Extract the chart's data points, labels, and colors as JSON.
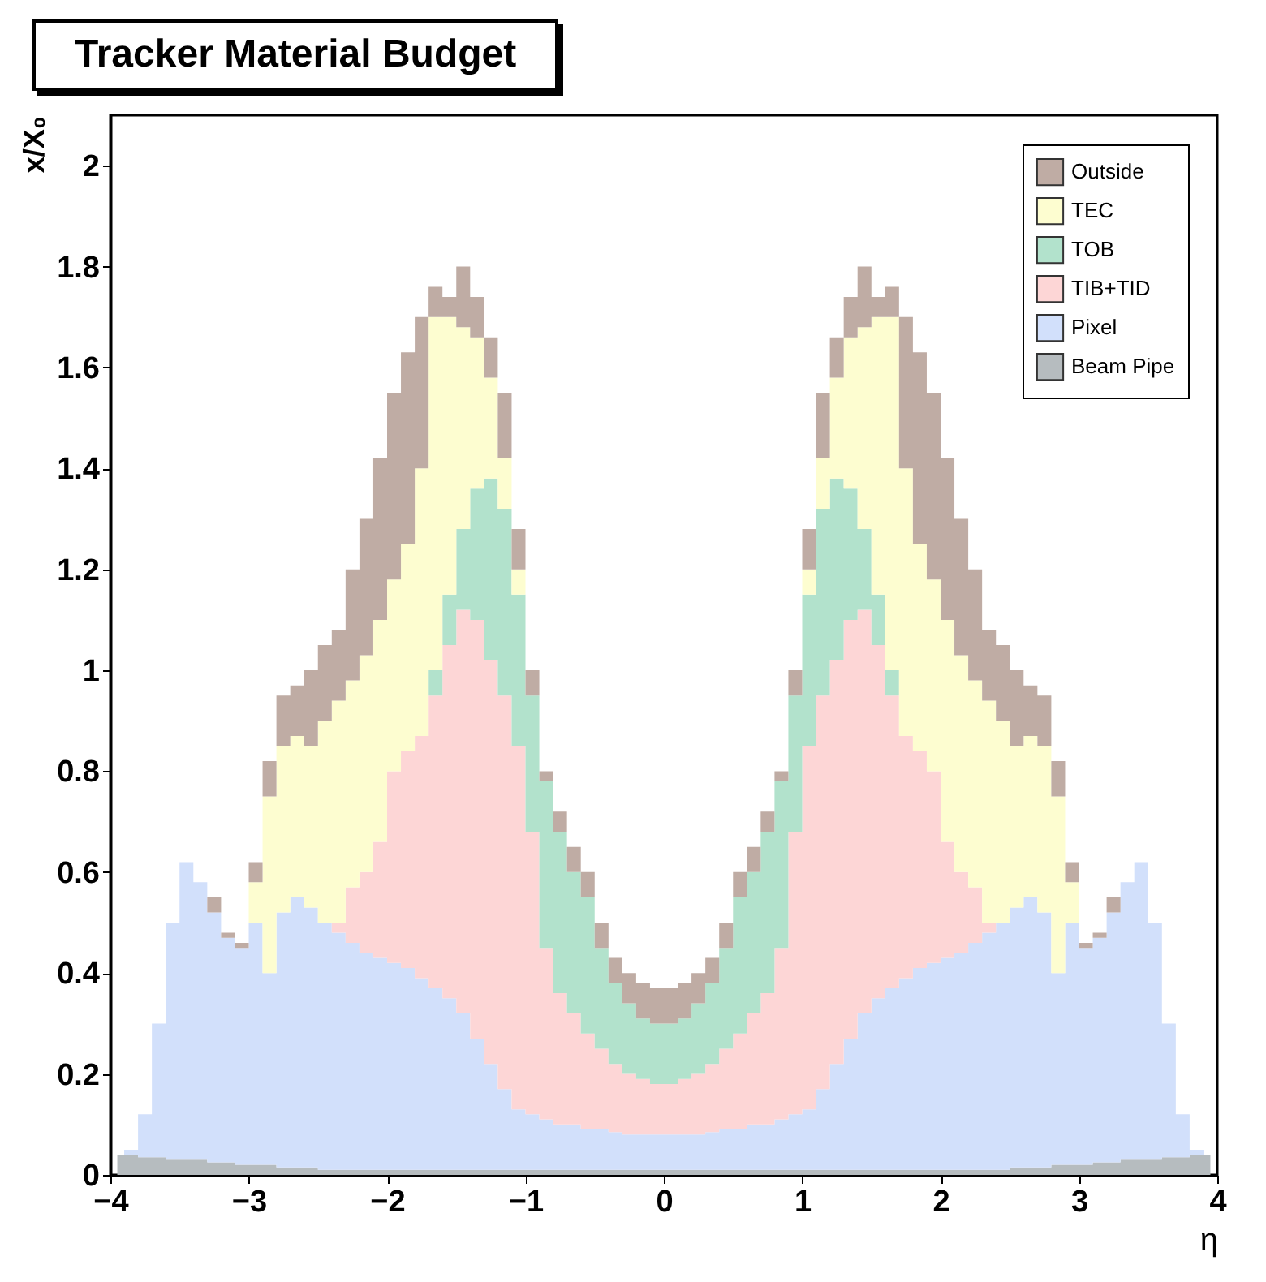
{
  "chart_data": {
    "type": "area",
    "title": "Tracker Material Budget",
    "xlabel": "η",
    "ylabel": "x/X₀",
    "stacked": true,
    "legend": "top right",
    "grid": false,
    "x": [
      -3.95,
      -3.85,
      -3.75,
      -3.65,
      -3.55,
      -3.45,
      -3.35,
      -3.25,
      -3.15,
      -3.05,
      -2.95,
      -2.85,
      -2.75,
      -2.65,
      -2.55,
      -2.45,
      -2.35,
      -2.25,
      -2.15,
      -2.05,
      -1.95,
      -1.85,
      -1.75,
      -1.65,
      -1.55,
      -1.45,
      -1.35,
      -1.25,
      -1.15,
      -1.05,
      -0.95,
      -0.85,
      -0.75,
      -0.65,
      -0.55,
      -0.45,
      -0.35,
      -0.25,
      -0.15,
      -0.05,
      0.05,
      0.15,
      0.25,
      0.35,
      0.45,
      0.55,
      0.65,
      0.75,
      0.85,
      0.95,
      1.05,
      1.15,
      1.25,
      1.35,
      1.45,
      1.55,
      1.65,
      1.75,
      1.85,
      1.95,
      2.05,
      2.15,
      2.25,
      2.35,
      2.45,
      2.55,
      2.65,
      2.75,
      2.85,
      2.95,
      3.05,
      3.15,
      3.25,
      3.35,
      3.45,
      3.55,
      3.65,
      3.75,
      3.85,
      3.95
    ],
    "xlim": [
      -4,
      4
    ],
    "xticks": [
      -4,
      -3,
      -2,
      -1,
      0,
      1,
      2,
      3,
      4
    ],
    "ylim": [
      0,
      2.1
    ],
    "yticks": [
      0,
      0.2,
      0.4,
      0.6,
      0.8,
      1,
      1.2,
      1.4,
      1.6,
      1.8,
      2
    ],
    "series": [
      {
        "name": "Beam Pipe",
        "color": "#b6bcbf",
        "values": [
          0.04,
          0.04,
          0.035,
          0.035,
          0.03,
          0.03,
          0.03,
          0.025,
          0.025,
          0.02,
          0.02,
          0.02,
          0.015,
          0.015,
          0.015,
          0.01,
          0.01,
          0.01,
          0.01,
          0.01,
          0.01,
          0.01,
          0.01,
          0.01,
          0.01,
          0.01,
          0.01,
          0.01,
          0.01,
          0.01,
          0.01,
          0.01,
          0.01,
          0.01,
          0.01,
          0.01,
          0.01,
          0.01,
          0.01,
          0.01,
          0.01,
          0.01,
          0.01,
          0.01,
          0.01,
          0.01,
          0.01,
          0.01,
          0.01,
          0.01,
          0.01,
          0.01,
          0.01,
          0.01,
          0.01,
          0.01,
          0.01,
          0.01,
          0.01,
          0.01,
          0.01,
          0.01,
          0.01,
          0.01,
          0.01,
          0.015,
          0.015,
          0.015,
          0.02,
          0.02,
          0.02,
          0.025,
          0.025,
          0.03,
          0.03,
          0.03,
          0.035,
          0.035,
          0.04,
          0.04
        ]
      },
      {
        "name": "Pixel",
        "color": "#d2e0fb",
        "values": [
          0,
          0.01,
          0.085,
          0.265,
          0.47,
          0.59,
          0.55,
          0.495,
          0.445,
          0.43,
          0.48,
          0.38,
          0.505,
          0.535,
          0.515,
          0.49,
          0.47,
          0.45,
          0.43,
          0.42,
          0.41,
          0.4,
          0.38,
          0.36,
          0.34,
          0.31,
          0.26,
          0.21,
          0.16,
          0.12,
          0.11,
          0.1,
          0.09,
          0.09,
          0.08,
          0.08,
          0.075,
          0.07,
          0.07,
          0.07,
          0.07,
          0.07,
          0.07,
          0.075,
          0.08,
          0.08,
          0.09,
          0.09,
          0.1,
          0.11,
          0.12,
          0.16,
          0.21,
          0.26,
          0.31,
          0.34,
          0.36,
          0.38,
          0.4,
          0.41,
          0.42,
          0.43,
          0.45,
          0.47,
          0.49,
          0.515,
          0.535,
          0.505,
          0.38,
          0.48,
          0.43,
          0.445,
          0.495,
          0.55,
          0.59,
          0.47,
          0.265,
          0.085,
          0.01,
          0
        ]
      },
      {
        "name": "TIB+TID",
        "color": "#fdd6d6",
        "values": [
          0,
          0,
          0,
          0,
          0,
          0,
          0,
          0,
          0,
          0,
          0,
          0,
          0,
          0,
          0,
          0,
          0.02,
          0.11,
          0.16,
          0.23,
          0.38,
          0.43,
          0.48,
          0.58,
          0.7,
          0.8,
          0.83,
          0.8,
          0.78,
          0.72,
          0.56,
          0.34,
          0.26,
          0.22,
          0.19,
          0.16,
          0.135,
          0.12,
          0.11,
          0.1,
          0.1,
          0.11,
          0.12,
          0.135,
          0.16,
          0.19,
          0.22,
          0.26,
          0.34,
          0.56,
          0.72,
          0.78,
          0.8,
          0.83,
          0.8,
          0.7,
          0.58,
          0.48,
          0.43,
          0.38,
          0.23,
          0.16,
          0.11,
          0.02,
          0,
          0,
          0,
          0,
          0,
          0,
          0,
          0,
          0,
          0,
          0,
          0,
          0,
          0,
          0,
          0
        ]
      },
      {
        "name": "TOB",
        "color": "#b2e2cc",
        "values": [
          0,
          0,
          0,
          0,
          0,
          0,
          0,
          0,
          0,
          0,
          0,
          0,
          0,
          0,
          0,
          0,
          0,
          0,
          0,
          0,
          0,
          0,
          0,
          0.05,
          0.1,
          0.16,
          0.26,
          0.36,
          0.37,
          0.3,
          0.27,
          0.33,
          0.32,
          0.28,
          0.27,
          0.2,
          0.16,
          0.14,
          0.12,
          0.12,
          0.12,
          0.12,
          0.14,
          0.16,
          0.2,
          0.27,
          0.28,
          0.32,
          0.33,
          0.27,
          0.3,
          0.37,
          0.36,
          0.26,
          0.16,
          0.1,
          0.05,
          0,
          0,
          0,
          0,
          0,
          0,
          0,
          0,
          0,
          0,
          0,
          0,
          0,
          0,
          0,
          0,
          0,
          0,
          0,
          0,
          0,
          0,
          0
        ]
      },
      {
        "name": "TEC",
        "color": "#fdfdd0",
        "values": [
          0,
          0,
          0,
          0,
          0,
          0,
          0,
          0,
          0,
          0,
          0.08,
          0.35,
          0.33,
          0.32,
          0.32,
          0.4,
          0.44,
          0.41,
          0.43,
          0.44,
          0.38,
          0.41,
          0.53,
          0.7,
          0.55,
          0.4,
          0.3,
          0.2,
          0.1,
          0.05,
          0,
          0,
          0,
          0,
          0,
          0,
          0,
          0,
          0,
          0,
          0,
          0,
          0,
          0,
          0,
          0,
          0,
          0,
          0,
          0,
          0.05,
          0.1,
          0.2,
          0.3,
          0.4,
          0.55,
          0.7,
          0.53,
          0.41,
          0.38,
          0.44,
          0.43,
          0.41,
          0.44,
          0.4,
          0.32,
          0.32,
          0.33,
          0.35,
          0.08,
          0,
          0,
          0,
          0,
          0,
          0,
          0,
          0,
          0,
          0
        ]
      },
      {
        "name": "Outside",
        "color": "#bfaca4",
        "values": [
          0,
          0,
          0,
          0,
          0,
          0,
          0,
          0.03,
          0.01,
          0.01,
          0.04,
          0.07,
          0.1,
          0.1,
          0.15,
          0.15,
          0.14,
          0.22,
          0.27,
          0.32,
          0.37,
          0.38,
          0.3,
          0.06,
          0.04,
          0.12,
          0.08,
          0.08,
          0.13,
          0.08,
          0.05,
          0.02,
          0.04,
          0.05,
          0.05,
          0.05,
          0.05,
          0.06,
          0.07,
          0.07,
          0.07,
          0.07,
          0.06,
          0.05,
          0.05,
          0.05,
          0.05,
          0.04,
          0.02,
          0.05,
          0.08,
          0.13,
          0.08,
          0.08,
          0.12,
          0.04,
          0.06,
          0.3,
          0.38,
          0.37,
          0.32,
          0.27,
          0.22,
          0.14,
          0.15,
          0.15,
          0.1,
          0.1,
          0.07,
          0.04,
          0.01,
          0.01,
          0.03,
          0,
          0,
          0,
          0,
          0,
          0,
          0
        ]
      }
    ]
  }
}
